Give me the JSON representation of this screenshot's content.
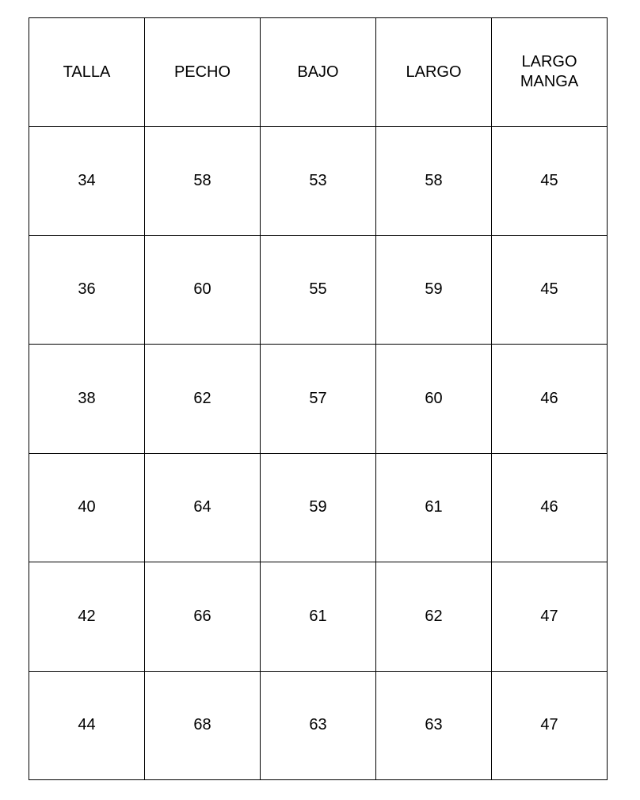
{
  "table": {
    "headers": [
      "TALLA",
      "PECHO",
      "BAJO",
      "LARGO",
      "LARGO MANGA"
    ],
    "rows": [
      [
        "34",
        "58",
        "53",
        "58",
        "45"
      ],
      [
        "36",
        "60",
        "55",
        "59",
        "45"
      ],
      [
        "38",
        "62",
        "57",
        "60",
        "46"
      ],
      [
        "40",
        "64",
        "59",
        "61",
        "46"
      ],
      [
        "42",
        "66",
        "61",
        "62",
        "47"
      ],
      [
        "44",
        "68",
        "63",
        "63",
        "47"
      ]
    ]
  }
}
